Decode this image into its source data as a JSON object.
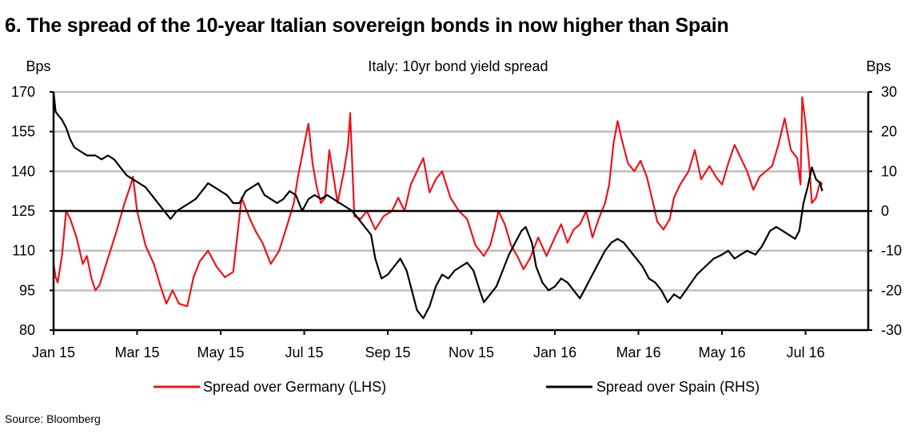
{
  "title": "6. The spread of the 10-year Italian sovereign bonds in now higher than Spain",
  "source": "Source: Bloomberg",
  "chart_data": {
    "type": "line",
    "subtitle": "Italy: 10yr bond yield spread",
    "ylabel_left": "Bps",
    "ylabel_right": "Bps",
    "ylim_left": [
      80,
      170
    ],
    "yticks_left": [
      80,
      95,
      110,
      125,
      140,
      155,
      170
    ],
    "ylim_right": [
      -30,
      30
    ],
    "yticks_right": [
      -30,
      -20,
      -10,
      0,
      10,
      20,
      30
    ],
    "x_range_months": [
      0,
      19.5
    ],
    "x_ticks": [
      {
        "label": "Jan 15",
        "m": 0
      },
      {
        "label": "Mar 15",
        "m": 2
      },
      {
        "label": "May 15",
        "m": 4
      },
      {
        "label": "Jul 15",
        "m": 6
      },
      {
        "label": "Sep 15",
        "m": 8
      },
      {
        "label": "Nov 15",
        "m": 10
      },
      {
        "label": "Jan 16",
        "m": 12
      },
      {
        "label": "Mar 16",
        "m": 14
      },
      {
        "label": "May 16",
        "m": 16
      },
      {
        "label": "Jul 16",
        "m": 18
      }
    ],
    "grid": true,
    "zero_line_right": 0,
    "legend_position": "bottom",
    "series": [
      {
        "name": "Spread over Germany (LHS)",
        "axis": "left",
        "color": "#e8161b",
        "points": [
          [
            0.0,
            105
          ],
          [
            0.05,
            100
          ],
          [
            0.1,
            98
          ],
          [
            0.2,
            108
          ],
          [
            0.3,
            125
          ],
          [
            0.4,
            122
          ],
          [
            0.55,
            115
          ],
          [
            0.7,
            105
          ],
          [
            0.8,
            108
          ],
          [
            0.9,
            100
          ],
          [
            1.0,
            95
          ],
          [
            1.1,
            97
          ],
          [
            1.3,
            107
          ],
          [
            1.5,
            117
          ],
          [
            1.7,
            128
          ],
          [
            1.85,
            135
          ],
          [
            1.9,
            138
          ],
          [
            2.0,
            125
          ],
          [
            2.2,
            112
          ],
          [
            2.4,
            105
          ],
          [
            2.55,
            97
          ],
          [
            2.7,
            90
          ],
          [
            2.85,
            95
          ],
          [
            3.0,
            90
          ],
          [
            3.2,
            89
          ],
          [
            3.35,
            100
          ],
          [
            3.5,
            106
          ],
          [
            3.7,
            110
          ],
          [
            3.9,
            104
          ],
          [
            4.1,
            100
          ],
          [
            4.3,
            102
          ],
          [
            4.5,
            130
          ],
          [
            4.7,
            122
          ],
          [
            4.85,
            117
          ],
          [
            5.0,
            113
          ],
          [
            5.2,
            105
          ],
          [
            5.4,
            110
          ],
          [
            5.6,
            120
          ],
          [
            5.75,
            128
          ],
          [
            5.85,
            138
          ],
          [
            6.0,
            150
          ],
          [
            6.1,
            158
          ],
          [
            6.2,
            143
          ],
          [
            6.3,
            134
          ],
          [
            6.4,
            128
          ],
          [
            6.5,
            130
          ],
          [
            6.6,
            148
          ],
          [
            6.7,
            138
          ],
          [
            6.8,
            128
          ],
          [
            6.95,
            140
          ],
          [
            7.05,
            150
          ],
          [
            7.1,
            162
          ],
          [
            7.2,
            123
          ],
          [
            7.35,
            122
          ],
          [
            7.5,
            125
          ],
          [
            7.7,
            118
          ],
          [
            7.9,
            123
          ],
          [
            8.1,
            125
          ],
          [
            8.25,
            130
          ],
          [
            8.4,
            125
          ],
          [
            8.55,
            135
          ],
          [
            8.7,
            140
          ],
          [
            8.85,
            145
          ],
          [
            9.0,
            132
          ],
          [
            9.15,
            137
          ],
          [
            9.3,
            140
          ],
          [
            9.5,
            130
          ],
          [
            9.7,
            125
          ],
          [
            9.9,
            122
          ],
          [
            10.1,
            112
          ],
          [
            10.3,
            108
          ],
          [
            10.45,
            112
          ],
          [
            10.55,
            118
          ],
          [
            10.65,
            125
          ],
          [
            10.8,
            120
          ],
          [
            10.95,
            112
          ],
          [
            11.1,
            108
          ],
          [
            11.25,
            103
          ],
          [
            11.4,
            107
          ],
          [
            11.6,
            115
          ],
          [
            11.8,
            108
          ],
          [
            12.0,
            115
          ],
          [
            12.15,
            120
          ],
          [
            12.3,
            113
          ],
          [
            12.45,
            118
          ],
          [
            12.6,
            120
          ],
          [
            12.75,
            125
          ],
          [
            12.9,
            115
          ],
          [
            13.05,
            122
          ],
          [
            13.2,
            128
          ],
          [
            13.3,
            135
          ],
          [
            13.4,
            150
          ],
          [
            13.5,
            159
          ],
          [
            13.6,
            152
          ],
          [
            13.75,
            143
          ],
          [
            13.9,
            140
          ],
          [
            14.05,
            144
          ],
          [
            14.2,
            138
          ],
          [
            14.35,
            128
          ],
          [
            14.45,
            121
          ],
          [
            14.6,
            118
          ],
          [
            14.75,
            122
          ],
          [
            14.85,
            130
          ],
          [
            15.0,
            135
          ],
          [
            15.2,
            140
          ],
          [
            15.35,
            148
          ],
          [
            15.5,
            137
          ],
          [
            15.7,
            142
          ],
          [
            15.85,
            138
          ],
          [
            16.0,
            135
          ],
          [
            16.15,
            143
          ],
          [
            16.3,
            150
          ],
          [
            16.45,
            145
          ],
          [
            16.6,
            140
          ],
          [
            16.75,
            133
          ],
          [
            16.9,
            138
          ],
          [
            17.05,
            140
          ],
          [
            17.2,
            142
          ],
          [
            17.35,
            150
          ],
          [
            17.5,
            160
          ],
          [
            17.65,
            148
          ],
          [
            17.8,
            145
          ],
          [
            17.88,
            135
          ],
          [
            17.92,
            168
          ],
          [
            18.0,
            158
          ],
          [
            18.1,
            140
          ],
          [
            18.15,
            128
          ],
          [
            18.25,
            130
          ],
          [
            18.35,
            136
          ],
          [
            18.4,
            135
          ]
        ]
      },
      {
        "name": "Spread over Spain (RHS)",
        "axis": "right",
        "color": "#000000",
        "points": [
          [
            0.0,
            30
          ],
          [
            0.05,
            25
          ],
          [
            0.12,
            24
          ],
          [
            0.2,
            23
          ],
          [
            0.3,
            21
          ],
          [
            0.4,
            18
          ],
          [
            0.5,
            16
          ],
          [
            0.65,
            15
          ],
          [
            0.8,
            14
          ],
          [
            1.0,
            14
          ],
          [
            1.15,
            13
          ],
          [
            1.3,
            14
          ],
          [
            1.45,
            13
          ],
          [
            1.6,
            11
          ],
          [
            1.75,
            9
          ],
          [
            1.9,
            8
          ],
          [
            2.05,
            7
          ],
          [
            2.2,
            6
          ],
          [
            2.35,
            4
          ],
          [
            2.5,
            2
          ],
          [
            2.65,
            0
          ],
          [
            2.8,
            -2
          ],
          [
            2.95,
            0
          ],
          [
            3.1,
            1
          ],
          [
            3.25,
            2
          ],
          [
            3.4,
            3
          ],
          [
            3.55,
            5
          ],
          [
            3.7,
            7
          ],
          [
            3.85,
            6
          ],
          [
            4.0,
            5
          ],
          [
            4.15,
            4
          ],
          [
            4.3,
            2
          ],
          [
            4.45,
            2
          ],
          [
            4.6,
            5
          ],
          [
            4.75,
            6
          ],
          [
            4.9,
            7
          ],
          [
            5.05,
            4
          ],
          [
            5.2,
            3
          ],
          [
            5.35,
            2
          ],
          [
            5.5,
            3
          ],
          [
            5.65,
            5
          ],
          [
            5.8,
            4
          ],
          [
            5.95,
            0
          ],
          [
            6.1,
            3
          ],
          [
            6.25,
            4
          ],
          [
            6.4,
            3
          ],
          [
            6.55,
            4
          ],
          [
            6.7,
            3
          ],
          [
            6.85,
            2
          ],
          [
            7.0,
            1
          ],
          [
            7.15,
            0
          ],
          [
            7.3,
            -2
          ],
          [
            7.45,
            -4
          ],
          [
            7.6,
            -6
          ],
          [
            7.7,
            -12
          ],
          [
            7.85,
            -17
          ],
          [
            8.0,
            -16
          ],
          [
            8.15,
            -14
          ],
          [
            8.3,
            -12
          ],
          [
            8.45,
            -15
          ],
          [
            8.6,
            -21
          ],
          [
            8.7,
            -25
          ],
          [
            8.85,
            -27
          ],
          [
            9.0,
            -24
          ],
          [
            9.15,
            -19
          ],
          [
            9.3,
            -16
          ],
          [
            9.45,
            -17
          ],
          [
            9.6,
            -15
          ],
          [
            9.75,
            -14
          ],
          [
            9.9,
            -13
          ],
          [
            10.05,
            -15
          ],
          [
            10.2,
            -20
          ],
          [
            10.3,
            -23
          ],
          [
            10.45,
            -21
          ],
          [
            10.6,
            -19
          ],
          [
            10.75,
            -15
          ],
          [
            10.9,
            -11
          ],
          [
            11.05,
            -8
          ],
          [
            11.2,
            -5
          ],
          [
            11.3,
            -4
          ],
          [
            11.45,
            -8
          ],
          [
            11.55,
            -14
          ],
          [
            11.7,
            -18
          ],
          [
            11.85,
            -20
          ],
          [
            12.0,
            -19
          ],
          [
            12.15,
            -17
          ],
          [
            12.3,
            -18
          ],
          [
            12.45,
            -20
          ],
          [
            12.6,
            -22
          ],
          [
            12.75,
            -19
          ],
          [
            12.9,
            -16
          ],
          [
            13.05,
            -13
          ],
          [
            13.2,
            -10
          ],
          [
            13.35,
            -8
          ],
          [
            13.5,
            -7
          ],
          [
            13.65,
            -8
          ],
          [
            13.8,
            -10
          ],
          [
            13.95,
            -12
          ],
          [
            14.1,
            -14
          ],
          [
            14.25,
            -17
          ],
          [
            14.4,
            -18
          ],
          [
            14.55,
            -20
          ],
          [
            14.7,
            -23
          ],
          [
            14.85,
            -21
          ],
          [
            15.0,
            -22
          ],
          [
            15.2,
            -19
          ],
          [
            15.4,
            -16
          ],
          [
            15.6,
            -14
          ],
          [
            15.8,
            -12
          ],
          [
            16.0,
            -11
          ],
          [
            16.15,
            -10
          ],
          [
            16.3,
            -12
          ],
          [
            16.45,
            -11
          ],
          [
            16.6,
            -10
          ],
          [
            16.8,
            -11
          ],
          [
            16.95,
            -9
          ],
          [
            17.05,
            -7
          ],
          [
            17.15,
            -5
          ],
          [
            17.3,
            -4
          ],
          [
            17.45,
            -5
          ],
          [
            17.6,
            -6
          ],
          [
            17.75,
            -7
          ],
          [
            17.85,
            -5
          ],
          [
            17.95,
            2
          ],
          [
            18.05,
            6
          ],
          [
            18.15,
            11
          ],
          [
            18.25,
            8
          ],
          [
            18.35,
            7
          ],
          [
            18.4,
            5
          ]
        ]
      }
    ]
  }
}
